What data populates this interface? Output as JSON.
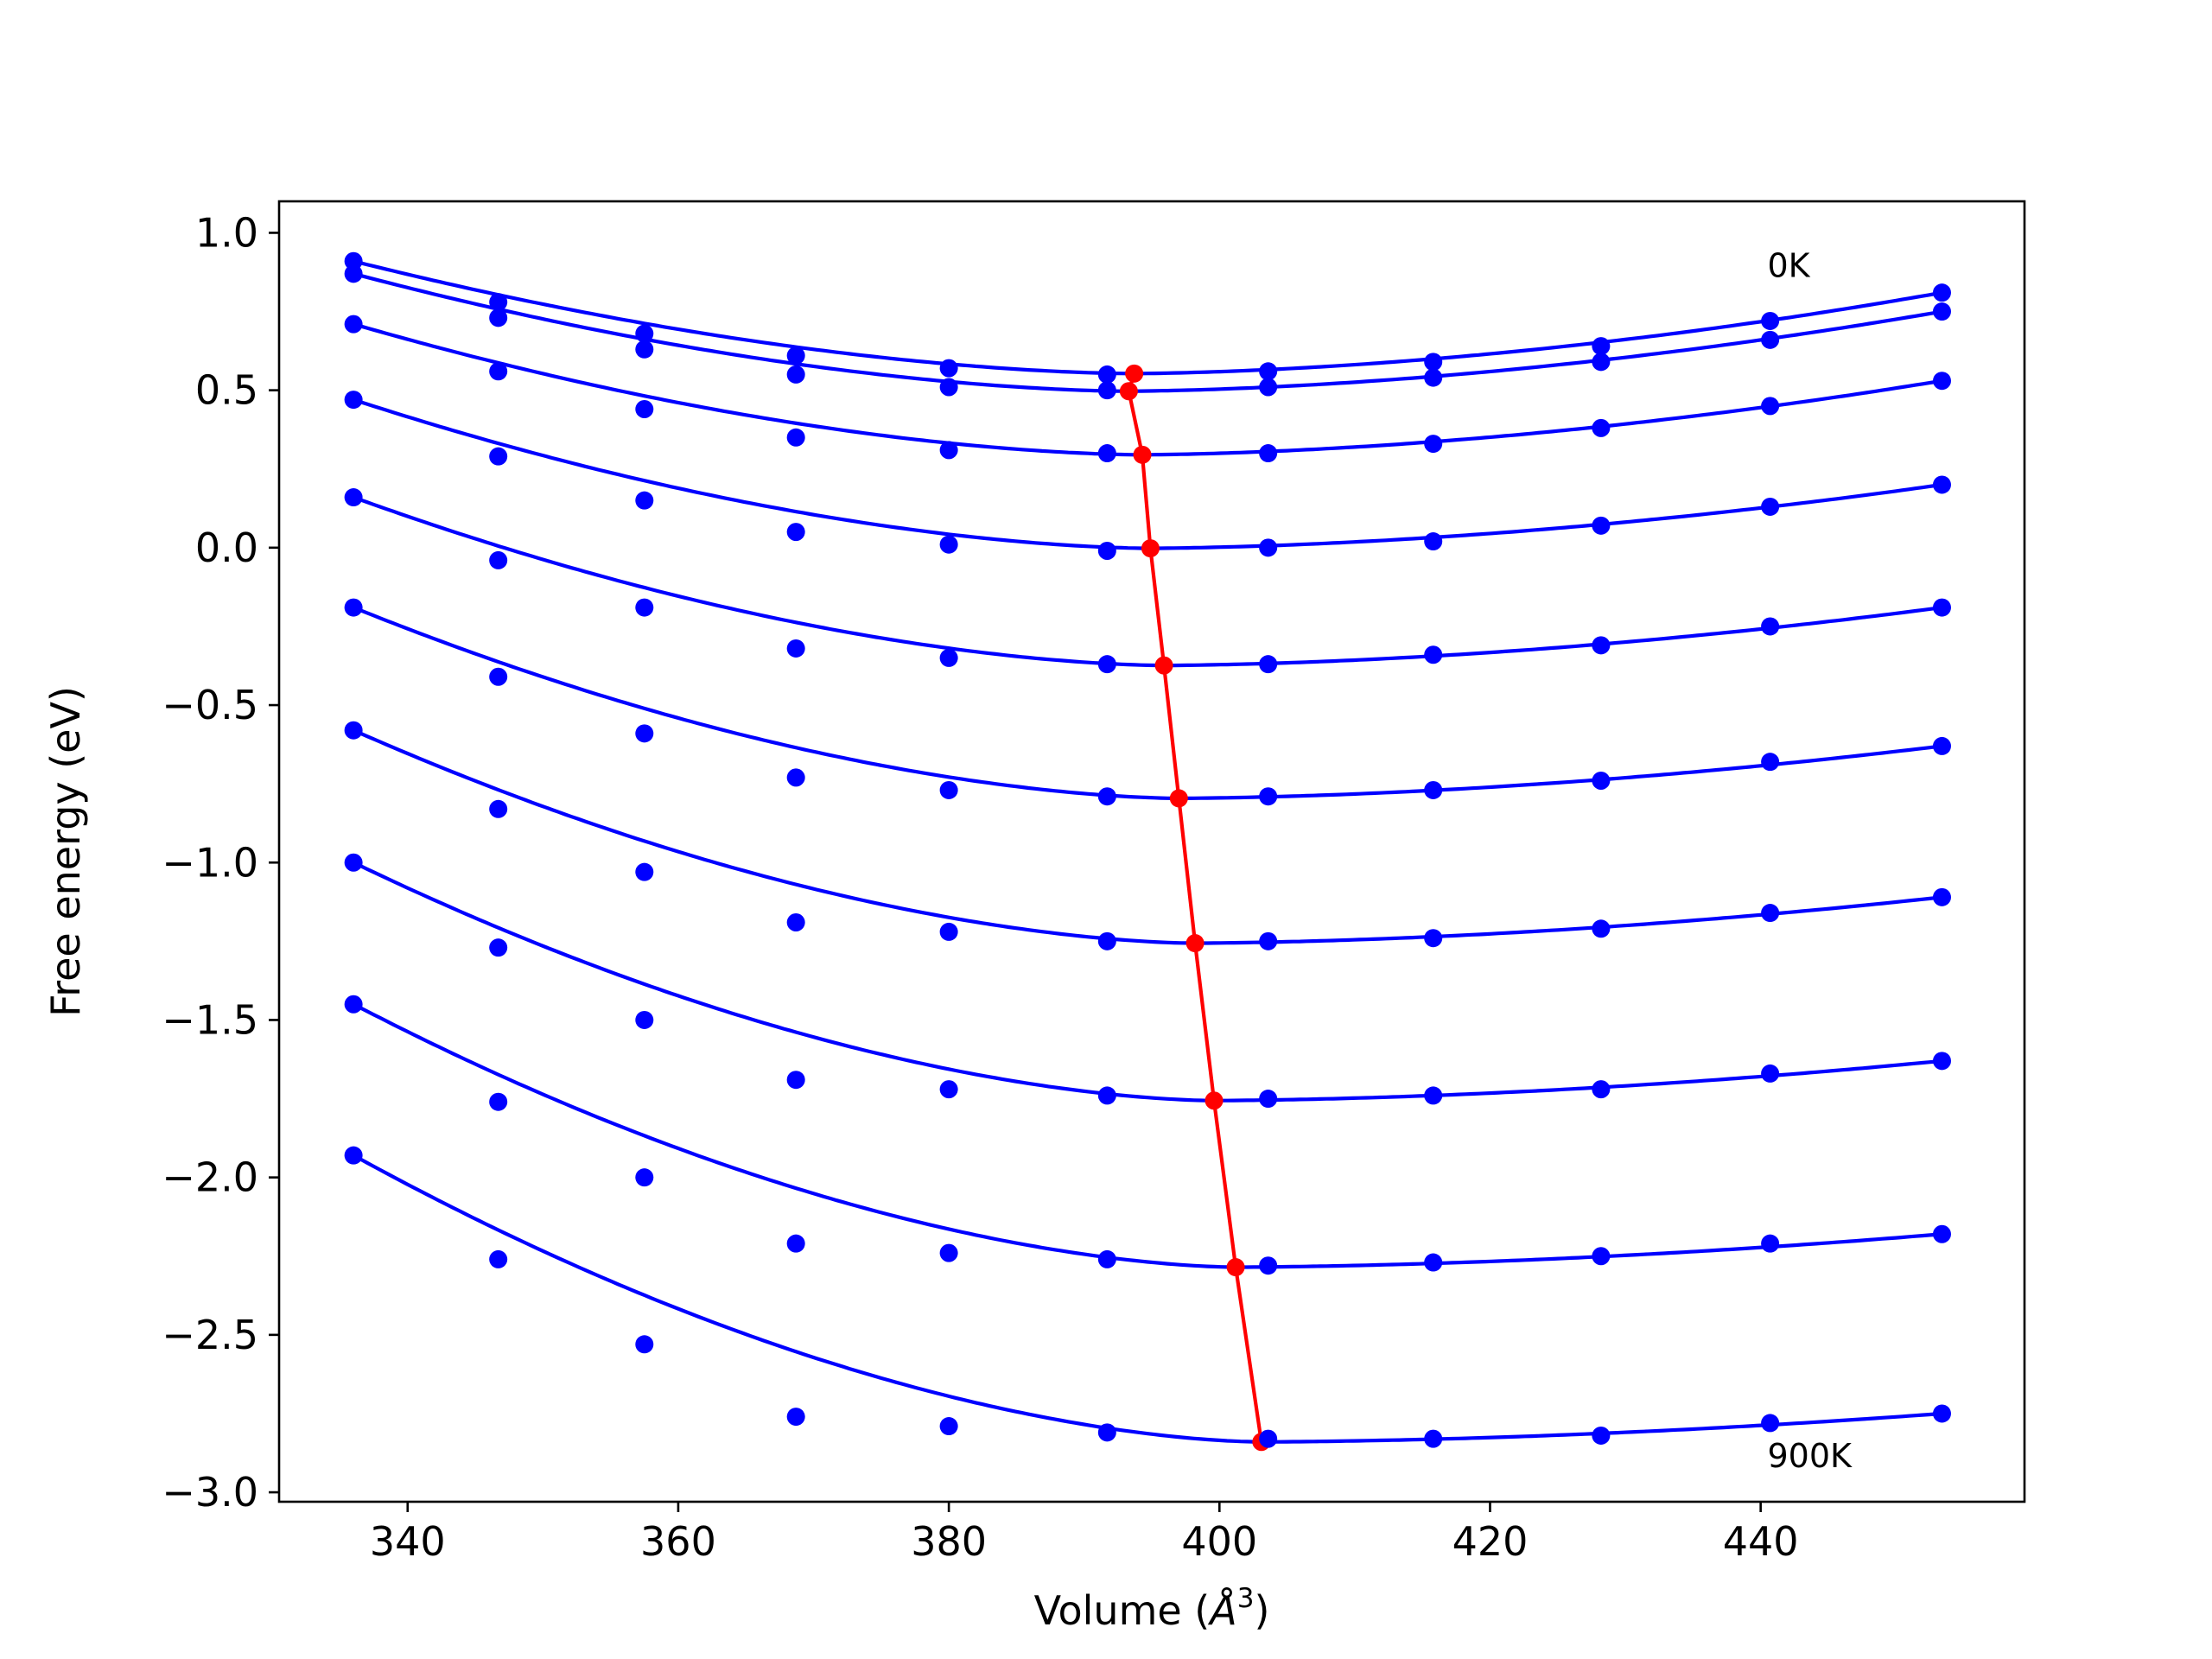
{
  "chart_data": {
    "type": "scatter",
    "xlabel": "Volume (",
    "xlabel_symbol": "Å",
    "xlabel_exponent": "3",
    "xlabel_close": ")",
    "ylabel": "Free energy (eV)",
    "xlim": [
      330.5,
      459.5
    ],
    "ylim": [
      -3.03,
      1.1
    ],
    "xticks": [
      340,
      360,
      380,
      400,
      420,
      440
    ],
    "yticks": [
      1.0,
      0.5,
      0.0,
      -0.5,
      -1.0,
      -1.5,
      -2.0,
      -2.5,
      -3.0
    ],
    "xtick_labels": [
      "340",
      "360",
      "380",
      "400",
      "420",
      "440"
    ],
    "ytick_labels": [
      "1.0",
      "0.5",
      "0.0",
      "−0.5",
      "−1.0",
      "−1.5",
      "−2.0",
      "−2.5",
      "−3.0"
    ],
    "annotations": [
      {
        "text": "0K",
        "x": 440.5,
        "y": 0.86
      },
      {
        "text": "900K",
        "x": 440.5,
        "y": -2.92
      }
    ],
    "x": [
      336.0,
      346.7,
      357.5,
      368.7,
      380.0,
      391.7,
      403.6,
      415.8,
      428.2,
      440.7,
      453.4
    ],
    "series": [
      {
        "values": [
          0.91,
          0.78,
          0.68,
          0.61,
          0.57,
          0.55,
          0.56,
          0.59,
          0.64,
          0.72,
          0.81
        ],
        "fit": {
          "v0": 393.7,
          "emin": 0.553
        }
      },
      {
        "values": [
          0.87,
          0.73,
          0.63,
          0.55,
          0.51,
          0.5,
          0.51,
          0.54,
          0.59,
          0.66,
          0.75
        ],
        "fit": {
          "v0": 393.3,
          "emin": 0.497
        }
      },
      {
        "values": [
          0.71,
          0.56,
          0.44,
          0.35,
          0.31,
          0.3,
          0.3,
          0.33,
          0.38,
          0.45,
          0.53
        ],
        "fit": {
          "v0": 394.3,
          "emin": 0.295
        }
      },
      {
        "values": [
          0.47,
          0.29,
          0.15,
          0.05,
          0.01,
          -0.01,
          0.0,
          0.02,
          0.07,
          0.13,
          0.2
        ],
        "fit": {
          "v0": 394.9,
          "emin": -0.002
        }
      },
      {
        "values": [
          0.16,
          -0.04,
          -0.19,
          -0.32,
          -0.35,
          -0.37,
          -0.37,
          -0.34,
          -0.31,
          -0.25,
          -0.19
        ],
        "fit": {
          "v0": 395.9,
          "emin": -0.374
        }
      },
      {
        "values": [
          -0.19,
          -0.41,
          -0.59,
          -0.73,
          -0.77,
          -0.79,
          -0.79,
          -0.77,
          -0.74,
          -0.68,
          -0.63
        ],
        "fit": {
          "v0": 397.0,
          "emin": -0.796
        }
      },
      {
        "values": [
          -0.58,
          -0.83,
          -1.03,
          -1.19,
          -1.22,
          -1.25,
          -1.25,
          -1.24,
          -1.21,
          -1.16,
          -1.11
        ],
        "fit": {
          "v0": 398.2,
          "emin": -1.256
        }
      },
      {
        "values": [
          -1.0,
          -1.27,
          -1.5,
          -1.69,
          -1.72,
          -1.74,
          -1.75,
          -1.74,
          -1.72,
          -1.67,
          -1.63
        ],
        "fit": {
          "v0": 399.6,
          "emin": -1.756
        }
      },
      {
        "values": [
          -1.45,
          -1.76,
          -2.0,
          -2.21,
          -2.24,
          -2.26,
          -2.28,
          -2.27,
          -2.25,
          -2.21,
          -2.18
        ],
        "fit": {
          "v0": 401.2,
          "emin": -2.285
        }
      },
      {
        "values": [
          -1.93,
          -2.26,
          -2.53,
          -2.76,
          -2.79,
          -2.81,
          -2.83,
          -2.83,
          -2.82,
          -2.78,
          -2.75
        ],
        "fit": {
          "v0": 403.1,
          "emin": -2.84
        }
      }
    ],
    "minima": {
      "x": [
        393.7,
        393.3,
        394.3,
        394.9,
        395.9,
        397.0,
        398.2,
        399.6,
        401.2,
        403.1
      ],
      "y": [
        0.553,
        0.497,
        0.295,
        -0.002,
        -0.374,
        -0.796,
        -1.256,
        -1.756,
        -2.285,
        -2.84
      ]
    },
    "colors": {
      "series": "#0000ff",
      "minima": "#ff0000",
      "axes": "#000000"
    }
  }
}
